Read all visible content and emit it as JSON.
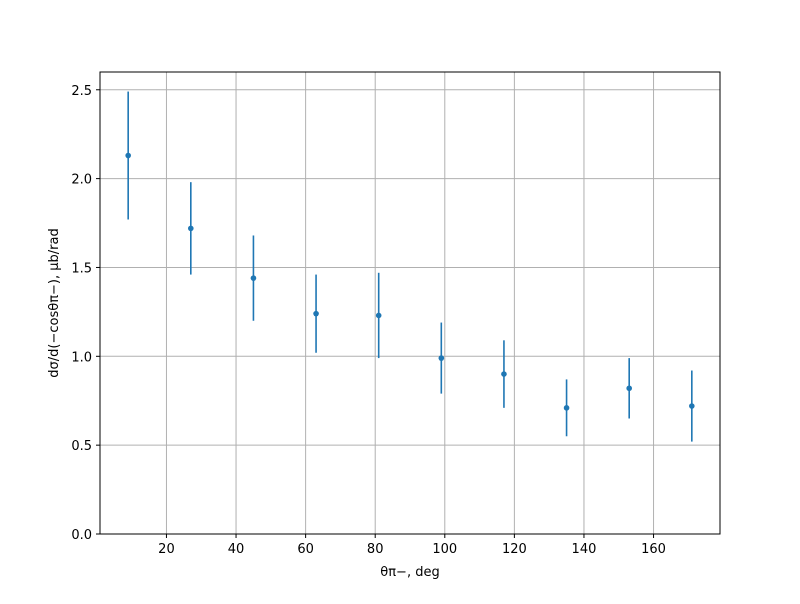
{
  "chart_data": {
    "type": "errorbar",
    "x_label": "θπ−, deg",
    "y_label": "dσ/d(−cosθπ−), μb/rad",
    "x": [
      9,
      27,
      45,
      63,
      81,
      99,
      117,
      135,
      153,
      171
    ],
    "values": [
      2.13,
      1.72,
      1.44,
      1.24,
      1.23,
      0.99,
      0.9,
      0.71,
      0.82,
      0.72
    ],
    "errors": [
      0.36,
      0.26,
      0.24,
      0.22,
      0.24,
      0.2,
      0.19,
      0.16,
      0.17,
      0.2
    ],
    "color": "#1f77b4",
    "xlim": [
      0.9,
      179.1
    ],
    "ylim": [
      0,
      2.6
    ],
    "xticks": [
      20,
      40,
      60,
      80,
      100,
      120,
      140,
      160
    ],
    "yticks": [
      {
        "value": 0,
        "label": "0.0"
      },
      {
        "value": 0.5,
        "label": "0.5"
      },
      {
        "value": 1,
        "label": "1.0"
      },
      {
        "value": 1.5,
        "label": "1.5"
      },
      {
        "value": 2,
        "label": "2.0"
      },
      {
        "value": 2.5,
        "label": "2.5"
      }
    ],
    "grid": true
  }
}
